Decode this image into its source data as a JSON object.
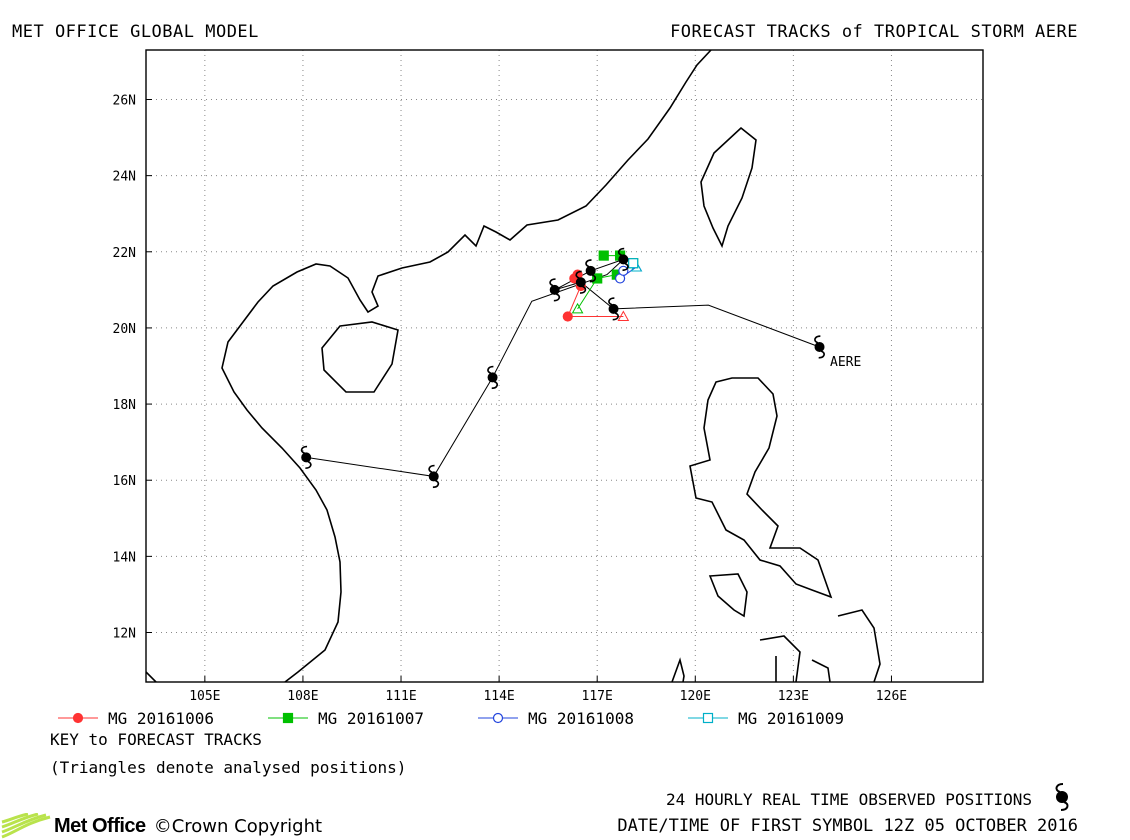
{
  "header": {
    "left_title": "MET OFFICE GLOBAL MODEL",
    "right_title": "FORECAST TRACKS of TROPICAL STORM AERE"
  },
  "map": {
    "lon_range": [
      103.2,
      128.8
    ],
    "lat_range": [
      10.7,
      27.3
    ],
    "lon_ticks": [
      {
        "value": 105,
        "label": "105E"
      },
      {
        "value": 108,
        "label": "108E"
      },
      {
        "value": 111,
        "label": "111E"
      },
      {
        "value": 114,
        "label": "114E"
      },
      {
        "value": 117,
        "label": "117E"
      },
      {
        "value": 120,
        "label": "120E"
      },
      {
        "value": 123,
        "label": "123E"
      },
      {
        "value": 126,
        "label": "126E"
      }
    ],
    "lat_ticks": [
      {
        "value": 12,
        "label": "12N"
      },
      {
        "value": 14,
        "label": "14N"
      },
      {
        "value": 16,
        "label": "16N"
      },
      {
        "value": 18,
        "label": "18N"
      },
      {
        "value": 20,
        "label": "20N"
      },
      {
        "value": 22,
        "label": "22N"
      },
      {
        "value": 24,
        "label": "24N"
      },
      {
        "value": 26,
        "label": "26N"
      }
    ],
    "gridlines": true,
    "storm_label": "AERE",
    "observed_track": [
      [
        123.8,
        19.5
      ],
      [
        120.4,
        20.6
      ],
      [
        117.5,
        20.5
      ],
      [
        116.5,
        21.2
      ],
      [
        115.7,
        21.0
      ],
      [
        116.8,
        21.5
      ],
      [
        117.8,
        21.8
      ],
      [
        117.3,
        21.4
      ],
      [
        115.0,
        20.7
      ],
      [
        113.8,
        18.7
      ],
      [
        112.0,
        16.1
      ],
      [
        108.1,
        16.6
      ]
    ],
    "observed_positions": [
      [
        123.8,
        19.5
      ],
      [
        117.5,
        20.5
      ],
      [
        116.5,
        21.2
      ],
      [
        115.7,
        21.0
      ],
      [
        116.8,
        21.5
      ],
      [
        117.8,
        21.8
      ],
      [
        113.8,
        18.7
      ],
      [
        112.0,
        16.1
      ],
      [
        108.1,
        16.6
      ]
    ],
    "forecast_tracks": [
      {
        "name": "MG 20161006",
        "color": "#ff3333",
        "marker": "circle-filled",
        "analysed": [
          117.8,
          20.3
        ],
        "points": [
          [
            117.8,
            20.3
          ],
          [
            116.1,
            20.3
          ],
          [
            116.5,
            21.1
          ],
          [
            116.3,
            21.3
          ],
          [
            116.4,
            21.4
          ]
        ]
      },
      {
        "name": "MG 20161007",
        "color": "#00c000",
        "marker": "square-filled",
        "analysed": [
          116.4,
          20.5
        ],
        "points": [
          [
            116.4,
            20.5
          ],
          [
            117.0,
            21.3
          ],
          [
            117.6,
            21.4
          ],
          [
            118.1,
            21.7
          ],
          [
            117.7,
            21.9
          ],
          [
            117.2,
            21.9
          ]
        ]
      },
      {
        "name": "MG 20161008",
        "color": "#2244dd",
        "marker": "circle-open",
        "analysed": [
          118.2,
          21.6
        ],
        "points": [
          [
            118.2,
            21.6
          ],
          [
            117.7,
            21.3
          ],
          [
            117.8,
            21.5
          ]
        ]
      },
      {
        "name": "MG 20161009",
        "color": "#00b0c8",
        "marker": "square-open",
        "analysed": [
          118.2,
          21.6
        ],
        "points": [
          [
            118.2,
            21.6
          ],
          [
            118.1,
            21.7
          ]
        ]
      }
    ]
  },
  "legend": [
    {
      "label": "MG 20161006",
      "color": "#ff3333",
      "marker": "circle-filled"
    },
    {
      "label": "MG 20161007",
      "color": "#00c000",
      "marker": "square-filled"
    },
    {
      "label": "MG 20161008",
      "color": "#2244dd",
      "marker": "circle-open"
    },
    {
      "label": "MG 20161009",
      "color": "#00b0c8",
      "marker": "square-open"
    }
  ],
  "key": {
    "title": "KEY to FORECAST TRACKS",
    "note": "(Triangles denote analysed positions)"
  },
  "footer": {
    "observed_label": "24 HOURLY REAL TIME OBSERVED POSITIONS",
    "first_symbol": "DATE/TIME OF FIRST SYMBOL 12Z 05 OCTOBER 2016",
    "logo_text": "Met Office",
    "copyright": "©Crown Copyright"
  },
  "colors": {
    "track": "#000000",
    "grid": "#888888"
  }
}
